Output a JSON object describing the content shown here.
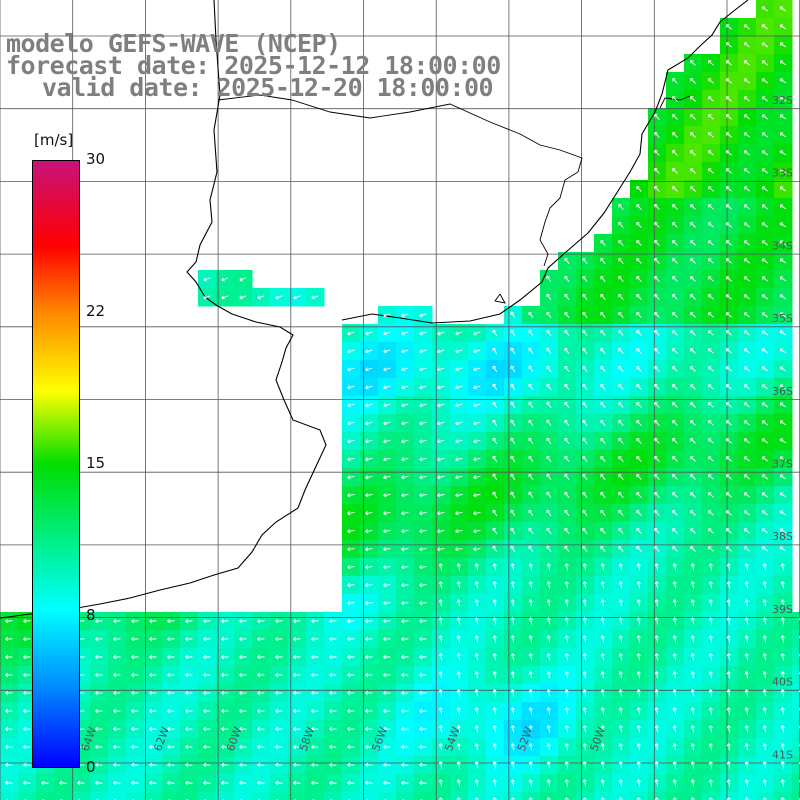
{
  "titles": {
    "model": "modelo GEFS-WAVE (NCEP)",
    "forecast": "forecast date: 2025-12-12 18:00:00",
    "valid": "valid date: 2025-12-20 18:00:00"
  },
  "colorbar": {
    "unit": "[m/s]",
    "ticks": [
      "30",
      "22",
      "15",
      "8",
      "0"
    ],
    "range": [
      0,
      30
    ],
    "stops": [
      "#0000ff",
      "#0088ff",
      "#00ffff",
      "#00dd00",
      "#ffff00",
      "#ff8800",
      "#ff0000",
      "#c8127a"
    ]
  },
  "lat_labels": [
    "32S",
    "33S",
    "34S",
    "35S",
    "36S",
    "37S",
    "38S",
    "39S",
    "40S",
    "41S"
  ],
  "lon_labels": [
    "64W",
    "62W",
    "60W",
    "58W",
    "56W",
    "54W",
    "52W",
    "50W"
  ],
  "colors": {
    "background": "#ffffff",
    "grid": "#555555",
    "arrow": "#ffffff",
    "coast": "#000000",
    "title": "#7f7f7f"
  },
  "legend_icons": [
    "wind-arrow-icon"
  ]
}
